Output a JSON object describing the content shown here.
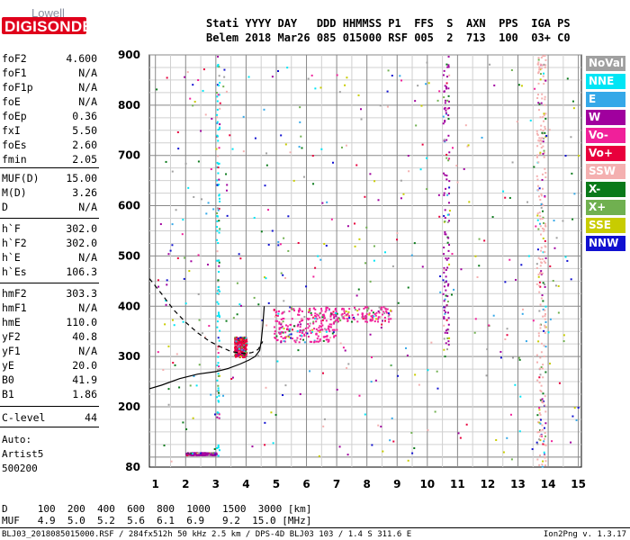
{
  "logo": {
    "line1": "Lowell",
    "line2": "DIGISONDE"
  },
  "header": {
    "labels": "Stati YYYY DAY   DDD HHMMSS P1  FFS  S  AXN  PPS  IGA PS",
    "values": "Belem 2018 Mar26 085 015000 RSF 005  2  713  100  03+ C0"
  },
  "params": [
    {
      "k": "foF2",
      "v": "4.600"
    },
    {
      "k": "foF1",
      "v": "N/A"
    },
    {
      "k": "foF1p",
      "v": "N/A"
    },
    {
      "k": "foE",
      "v": "N/A"
    },
    {
      "k": "foEp",
      "v": "0.36"
    },
    {
      "k": "fxI",
      "v": "5.50"
    },
    {
      "k": "foEs",
      "v": "2.60"
    },
    {
      "k": "fmin",
      "v": "2.05"
    },
    {
      "k": "MUF(D)",
      "v": "15.00"
    },
    {
      "k": "M(D)",
      "v": "3.26"
    },
    {
      "k": "D",
      "v": "N/A"
    },
    {
      "k": "h`F",
      "v": "302.0"
    },
    {
      "k": "h`F2",
      "v": "302.0"
    },
    {
      "k": "h`E",
      "v": "N/A"
    },
    {
      "k": "h`Es",
      "v": "106.3"
    },
    {
      "k": "hmF2",
      "v": "303.3"
    },
    {
      "k": "hmF1",
      "v": "N/A"
    },
    {
      "k": "hmE",
      "v": "110.0"
    },
    {
      "k": "yF2",
      "v": "40.8"
    },
    {
      "k": "yF1",
      "v": "N/A"
    },
    {
      "k": "yE",
      "v": "20.0"
    },
    {
      "k": "B0",
      "v": "41.9"
    },
    {
      "k": "B1",
      "v": "1.86"
    },
    {
      "k": "C-level",
      "v": "44"
    }
  ],
  "autoscaling": {
    "line1": "Auto:",
    "line2": "Artist5",
    "line3": "500200"
  },
  "legend": [
    {
      "label": "NoVal",
      "color": "#a0a0a0"
    },
    {
      "label": "NNE",
      "color": "#00e5f5"
    },
    {
      "label": "E",
      "color": "#35a8e8"
    },
    {
      "label": "W",
      "color": "#a0009e"
    },
    {
      "label": "Vo-",
      "color": "#f0209a"
    },
    {
      "label": "Vo+",
      "color": "#e8003c"
    },
    {
      "label": "SSW",
      "color": "#f4b0b0"
    },
    {
      "label": "X-",
      "color": "#0a7a1a"
    },
    {
      "label": "X+",
      "color": "#70b050"
    },
    {
      "label": "SSE",
      "color": "#c8cc00"
    },
    {
      "label": "NNW",
      "color": "#1010d0"
    }
  ],
  "bottom": {
    "d_row": "D     100  200  400  600  800  1000  1500  3000 [km]",
    "muf_row": "MUF   4.9  5.0  5.2  5.6  6.1  6.9   9.2  15.0 [MHz]",
    "footer_left": "BLJ03_2018085015000.RSF / 284fx512h 50 kHz 2.5 km / DPS-4D BLJ03 103 / 1.4 S 311.6 E",
    "footer_right": "Ion2Png v. 1.3.17"
  },
  "chart_data": {
    "type": "scatter",
    "title": "",
    "xlabel": "",
    "ylabel": "",
    "x_ticks": [
      "1",
      "2",
      "3",
      "4",
      "5",
      "6",
      "7",
      "8",
      "9",
      "10",
      "11",
      "12",
      "13",
      "14",
      "15"
    ],
    "y_ticks": [
      "80",
      "200",
      "300",
      "400",
      "500",
      "600",
      "700",
      "800",
      "900"
    ],
    "xlim": [
      0.8,
      15.1
    ],
    "ylim": [
      80,
      900
    ],
    "grid": true,
    "traces": [
      {
        "name": "",
        "style": "solid",
        "x": [
          0.8,
          1.2,
          1.8,
          2.4,
          3.0,
          3.4,
          3.8,
          4.1,
          4.3,
          4.45,
          4.5,
          4.55,
          4.6
        ],
        "y": [
          236,
          243,
          256,
          265,
          270,
          276,
          285,
          293,
          300,
          312,
          330,
          360,
          400
        ]
      },
      {
        "name": "",
        "style": "dashed",
        "x": [
          0.8,
          1.2,
          1.6,
          2.0,
          2.4,
          2.8,
          3.2,
          3.5,
          3.8,
          4.0,
          4.2,
          4.4,
          4.55
        ],
        "y": [
          455,
          425,
          393,
          368,
          347,
          330,
          318,
          310,
          307,
          306,
          308,
          314,
          330
        ]
      }
    ],
    "echo_regions": [
      {
        "x": [
          3.6,
          4.0
        ],
        "y": [
          300,
          340
        ],
        "color": "#e8003c",
        "density": "high"
      },
      {
        "x": [
          4.9,
          7.0
        ],
        "y": [
          330,
          400
        ],
        "color": "#f0209a",
        "density": "high"
      },
      {
        "x": [
          7.0,
          8.8
        ],
        "y": [
          370,
          400
        ],
        "color": "#f0209a",
        "density": "medium"
      },
      {
        "x": [
          13.6,
          13.9
        ],
        "y": [
          80,
          900
        ],
        "color": "#f4b0b0",
        "density": "high"
      },
      {
        "x": [
          10.5,
          10.7
        ],
        "y": [
          300,
          900
        ],
        "color": "#a0009e",
        "density": "medium"
      },
      {
        "x": [
          3.0,
          3.1
        ],
        "y": [
          80,
          900
        ],
        "color": "#00e5f5",
        "density": "medium"
      },
      {
        "x": [
          2.0,
          3.0
        ],
        "y": [
          105,
          110
        ],
        "color": "#a0009e",
        "density": "high"
      }
    ]
  }
}
